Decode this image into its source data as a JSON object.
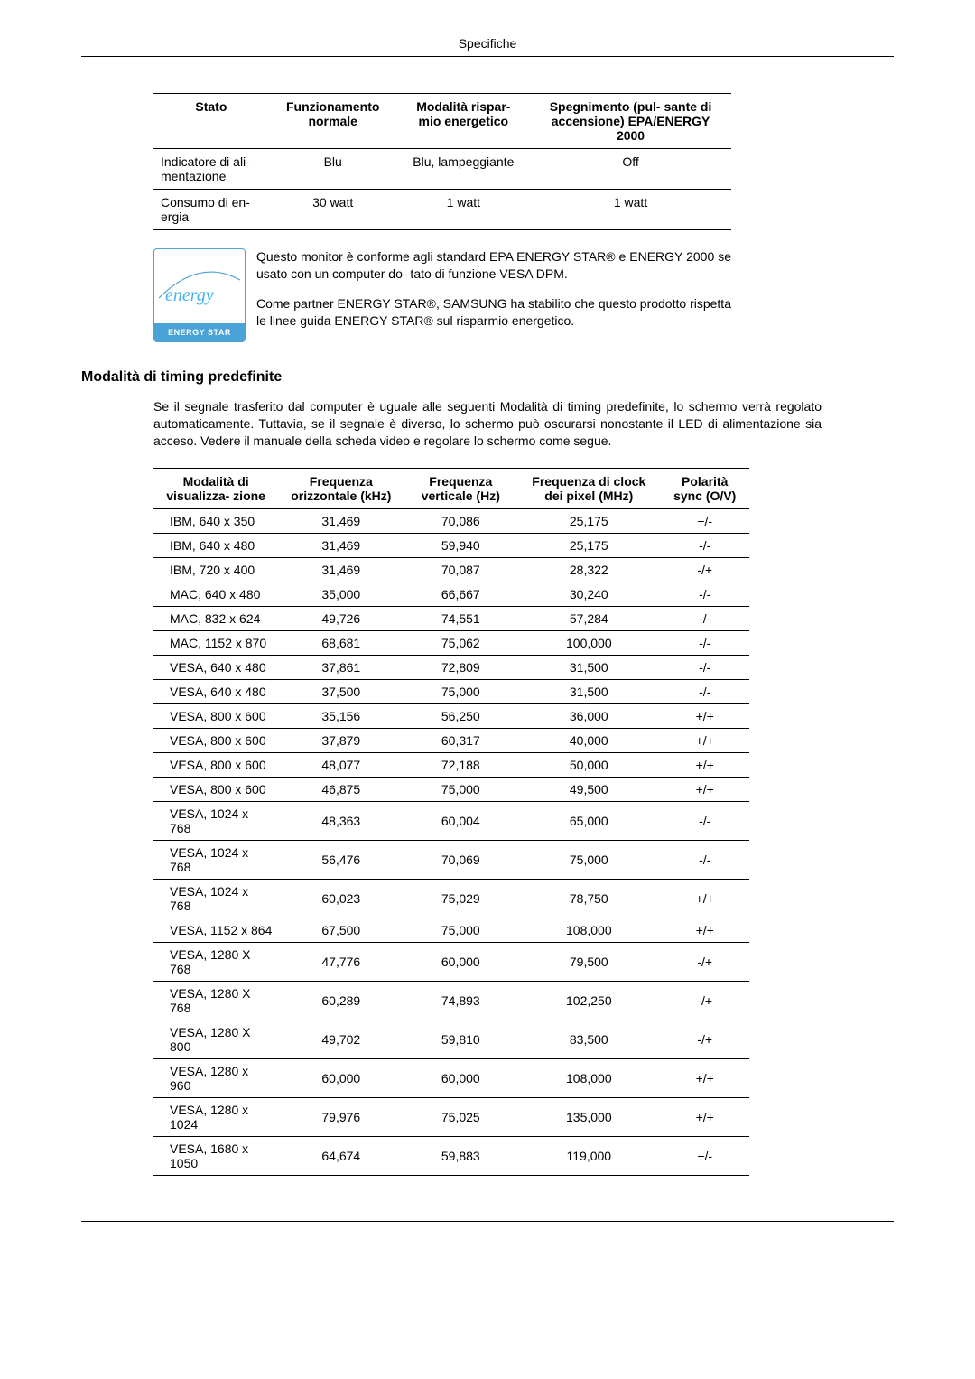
{
  "header": {
    "title": "Specifiche"
  },
  "powerTable": {
    "headers": {
      "state": "Stato",
      "normal": "Funzionamento normale",
      "saver": "Modalità rispar-\nmio energetico",
      "off": "Spegnimento (pul-\nsante di accensione)\nEPA/ENERGY 2000"
    },
    "rows": [
      {
        "state": "Indicatore di ali-\nmentazione",
        "normal": "Blu",
        "saver": "Blu, lampeggiante",
        "off": "Off"
      },
      {
        "state": "Consumo di en-\nergia",
        "normal": "30 watt",
        "saver": "1 watt",
        "off": "1 watt"
      }
    ]
  },
  "energyStar": {
    "logoScript": "energy",
    "logoBar": "ENERGY STAR",
    "para1": "Questo monitor è conforme agli standard EPA ENERGY STAR® e ENERGY 2000 se usato con un computer do-\ntato di funzione VESA DPM.",
    "para2": "Come partner ENERGY STAR®, SAMSUNG ha stabilito che questo prodotto rispetta le linee guida ENERGY STAR® sul risparmio energetico."
  },
  "timingSection": {
    "heading": "Modalità di timing predefinite",
    "intro": "Se il segnale trasferito dal computer è uguale alle seguenti Modalità di timing predefinite, lo schermo verrà regolato automaticamente. Tuttavia, se il segnale è diverso, lo schermo può oscurarsi nonostante il LED di alimentazione sia acceso. Vedere il manuale della scheda video e regolare lo schermo come segue."
  },
  "timingTable": {
    "headers": {
      "mode": "Modalità di visualizza-\nzione",
      "hfreq": "Frequenza\norizzontale\n(kHz)",
      "vfreq": "Frequenza\nverticale\n(Hz)",
      "pixel": "Frequenza\ndi clock dei\npixel (MHz)",
      "pol": "Polarità sync\n(O/V)"
    },
    "rows": [
      {
        "mode": "IBM, 640 x 350",
        "hfreq": "31,469",
        "vfreq": "70,086",
        "pixel": "25,175",
        "pol": "+/-"
      },
      {
        "mode": "IBM, 640 x 480",
        "hfreq": "31,469",
        "vfreq": "59,940",
        "pixel": "25,175",
        "pol": "-/-"
      },
      {
        "mode": "IBM, 720 x 400",
        "hfreq": "31,469",
        "vfreq": "70,087",
        "pixel": "28,322",
        "pol": "-/+"
      },
      {
        "mode": "MAC, 640 x 480",
        "hfreq": "35,000",
        "vfreq": "66,667",
        "pixel": "30,240",
        "pol": "-/-"
      },
      {
        "mode": "MAC, 832 x 624",
        "hfreq": "49,726",
        "vfreq": "74,551",
        "pixel": "57,284",
        "pol": "-/-"
      },
      {
        "mode": "MAC, 1152 x 870",
        "hfreq": "68,681",
        "vfreq": "75,062",
        "pixel": "100,000",
        "pol": "-/-"
      },
      {
        "mode": "VESA, 640 x 480",
        "hfreq": "37,861",
        "vfreq": "72,809",
        "pixel": "31,500",
        "pol": "-/-"
      },
      {
        "mode": "VESA, 640 x 480",
        "hfreq": "37,500",
        "vfreq": "75,000",
        "pixel": "31,500",
        "pol": "-/-"
      },
      {
        "mode": "VESA, 800 x 600",
        "hfreq": "35,156",
        "vfreq": "56,250",
        "pixel": "36,000",
        "pol": "+/+"
      },
      {
        "mode": "VESA, 800 x 600",
        "hfreq": "37,879",
        "vfreq": "60,317",
        "pixel": "40,000",
        "pol": "+/+"
      },
      {
        "mode": "VESA, 800 x 600",
        "hfreq": "48,077",
        "vfreq": "72,188",
        "pixel": "50,000",
        "pol": "+/+"
      },
      {
        "mode": "VESA, 800 x 600",
        "hfreq": "46,875",
        "vfreq": "75,000",
        "pixel": "49,500",
        "pol": "+/+"
      },
      {
        "mode": "VESA, 1024 x 768",
        "hfreq": "48,363",
        "vfreq": "60,004",
        "pixel": "65,000",
        "pol": "-/-"
      },
      {
        "mode": "VESA, 1024 x 768",
        "hfreq": "56,476",
        "vfreq": "70,069",
        "pixel": "75,000",
        "pol": "-/-"
      },
      {
        "mode": "VESA, 1024 x 768",
        "hfreq": "60,023",
        "vfreq": "75,029",
        "pixel": "78,750",
        "pol": "+/+"
      },
      {
        "mode": "VESA, 1152 x 864",
        "hfreq": "67,500",
        "vfreq": "75,000",
        "pixel": "108,000",
        "pol": "+/+"
      },
      {
        "mode": "VESA, 1280 X 768",
        "hfreq": "47,776",
        "vfreq": "60,000",
        "pixel": "79,500",
        "pol": "-/+"
      },
      {
        "mode": "VESA,  1280 X 768",
        "hfreq": "60,289",
        "vfreq": "74,893",
        "pixel": "102,250",
        "pol": "-/+"
      },
      {
        "mode": "VESA,  1280 X 800",
        "hfreq": "49,702",
        "vfreq": "59,810",
        "pixel": "83,500",
        "pol": "-/+"
      },
      {
        "mode": "VESA, 1280 x 960",
        "hfreq": "60,000",
        "vfreq": "60,000",
        "pixel": "108,000",
        "pol": "+/+"
      },
      {
        "mode": "VESA, 1280 x 1024",
        "hfreq": "79,976",
        "vfreq": "75,025",
        "pixel": "135,000",
        "pol": "+/+"
      },
      {
        "mode": "VESA, 1680 x 1050",
        "hfreq": "64,674",
        "vfreq": "59,883",
        "pixel": "119,000",
        "pol": "+/-"
      }
    ]
  }
}
